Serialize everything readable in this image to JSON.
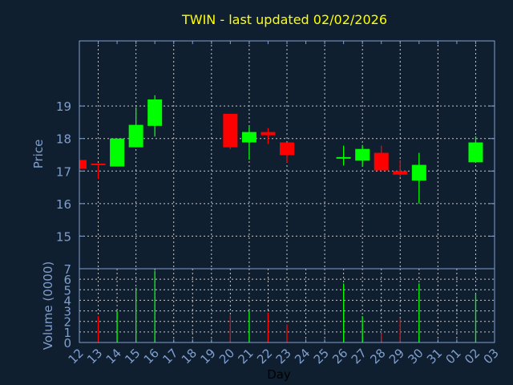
{
  "chart_data": [
    {
      "type": "candlestick",
      "title": "TWIN - last updated 02/02/2026",
      "ylabel": "Price",
      "ylim": [
        14,
        21
      ],
      "yticks": [
        15,
        16,
        17,
        18,
        19
      ],
      "grid": true,
      "colors": {
        "up": "#00ff00",
        "down": "#ff0000",
        "axis": "#7f9fcf",
        "grid": "#c8c8c8",
        "background": "#101f30",
        "title": "#ffff00"
      },
      "candles": [
        {
          "day": "12",
          "open": 17.34,
          "high": 17.34,
          "low": 17.07,
          "close": 17.07
        },
        {
          "day": "13",
          "open": 17.23,
          "high": 17.24,
          "low": 16.76,
          "close": 17.21
        },
        {
          "day": "14",
          "open": 17.14,
          "high": 18.0,
          "low": 17.14,
          "close": 18.0
        },
        {
          "day": "15",
          "open": 17.73,
          "high": 18.96,
          "low": 17.73,
          "close": 18.42
        },
        {
          "day": "16",
          "open": 18.39,
          "high": 19.33,
          "low": 18.06,
          "close": 19.2
        },
        {
          "day": "20",
          "open": 18.76,
          "high": 18.76,
          "low": 17.68,
          "close": 17.73
        },
        {
          "day": "21",
          "open": 17.88,
          "high": 18.36,
          "low": 17.35,
          "close": 18.2
        },
        {
          "day": "22",
          "open": 18.2,
          "high": 18.32,
          "low": 17.83,
          "close": 18.1
        },
        {
          "day": "23",
          "open": 17.88,
          "high": 17.88,
          "low": 17.26,
          "close": 17.49
        },
        {
          "day": "26",
          "open": 17.41,
          "high": 17.78,
          "low": 17.17,
          "close": 17.43
        },
        {
          "day": "27",
          "open": 17.32,
          "high": 17.8,
          "low": 17.15,
          "close": 17.68
        },
        {
          "day": "28",
          "open": 17.56,
          "high": 17.78,
          "low": 17.02,
          "close": 17.02
        },
        {
          "day": "29",
          "open": 17.0,
          "high": 17.34,
          "low": 16.82,
          "close": 16.89
        },
        {
          "day": "30",
          "open": 16.71,
          "high": 17.56,
          "low": 16.0,
          "close": 17.19
        },
        {
          "day": "02",
          "open": 17.27,
          "high": 18.07,
          "low": 17.27,
          "close": 17.88
        }
      ]
    },
    {
      "type": "bar",
      "ylabel": "Volume (0000)",
      "xlabel": "Day",
      "ylim": [
        0,
        7
      ],
      "yticks": [
        0,
        1,
        2,
        3,
        4,
        5,
        6,
        7
      ],
      "grid": true,
      "categories": [
        "12",
        "13",
        "14",
        "15",
        "16",
        "17",
        "18",
        "19",
        "20",
        "21",
        "22",
        "23",
        "24",
        "25",
        "26",
        "27",
        "28",
        "29",
        "30",
        "31",
        "01",
        "02",
        "03"
      ],
      "bars": [
        {
          "day": "13",
          "value": 2.5,
          "color": "#ff0000"
        },
        {
          "day": "14",
          "value": 3.0,
          "color": "#00ff00"
        },
        {
          "day": "15",
          "value": 5.2,
          "color": "#00ff00"
        },
        {
          "day": "16",
          "value": 6.8,
          "color": "#00ff00"
        },
        {
          "day": "20",
          "value": 2.6,
          "color": "#ff0000"
        },
        {
          "day": "21",
          "value": 3.0,
          "color": "#00ff00"
        },
        {
          "day": "22",
          "value": 2.8,
          "color": "#ff0000"
        },
        {
          "day": "23",
          "value": 1.7,
          "color": "#ff0000"
        },
        {
          "day": "26",
          "value": 5.6,
          "color": "#00ff00"
        },
        {
          "day": "27",
          "value": 2.5,
          "color": "#00ff00"
        },
        {
          "day": "28",
          "value": 0.9,
          "color": "#ff0000"
        },
        {
          "day": "29",
          "value": 2.3,
          "color": "#ff0000"
        },
        {
          "day": "30",
          "value": 5.6,
          "color": "#00ff00"
        },
        {
          "day": "02",
          "value": 4.6,
          "color": "#00ff00"
        }
      ]
    }
  ]
}
